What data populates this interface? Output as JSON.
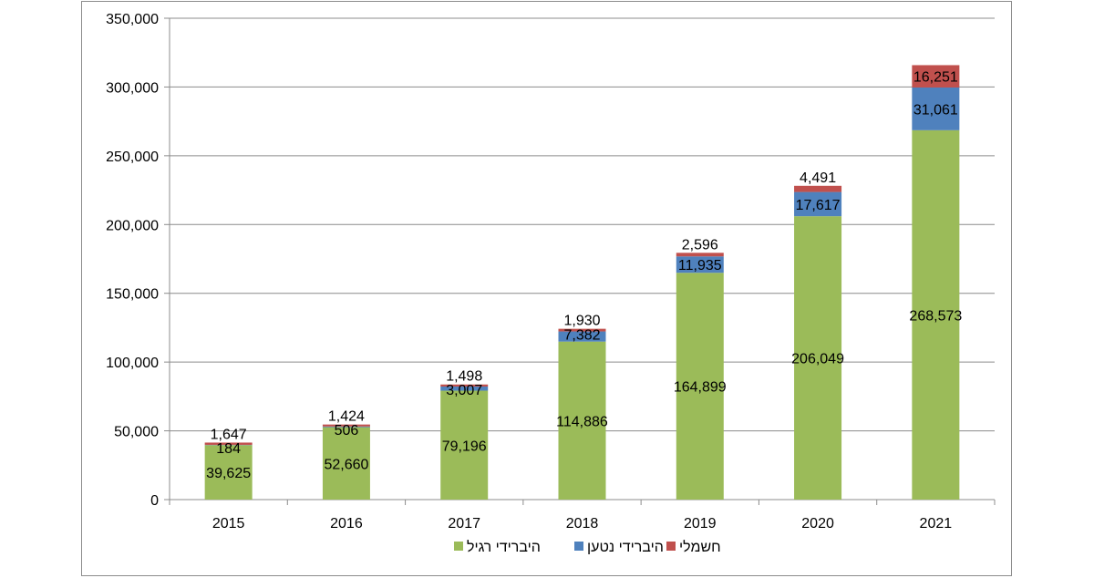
{
  "chart_data": {
    "type": "bar",
    "stacked": true,
    "title": "",
    "xlabel": "",
    "ylabel": "",
    "categories": [
      "2015",
      "2016",
      "2017",
      "2018",
      "2019",
      "2020",
      "2021"
    ],
    "ylim": [
      0,
      350000
    ],
    "yticks": [
      0,
      50000,
      100000,
      150000,
      200000,
      250000,
      300000,
      350000
    ],
    "ytick_labels": [
      "0",
      "50,000",
      "100,000",
      "150,000",
      "200,000",
      "250,000",
      "300,000",
      "350,000"
    ],
    "grid": true,
    "legend_position": "bottom",
    "series": [
      {
        "name": "היברידי רגיל",
        "color": "#9bbb59",
        "values": [
          39625,
          52660,
          79196,
          114886,
          164899,
          206049,
          268573
        ],
        "labels": [
          "39,625",
          "52,660",
          "79,196",
          "114,886",
          "164,899",
          "206,049",
          "268,573"
        ]
      },
      {
        "name": "היברידי נטען",
        "color": "#4f81bd",
        "values": [
          184,
          506,
          3007,
          7382,
          11935,
          17617,
          31061
        ],
        "labels": [
          "184",
          "506",
          "3,007",
          "7,382",
          "11,935",
          "17,617",
          "31,061"
        ]
      },
      {
        "name": "חשמלי",
        "color": "#c0504d",
        "values": [
          1647,
          1424,
          1498,
          1930,
          2596,
          4491,
          16251
        ],
        "labels": [
          "1,647",
          "1,424",
          "1,498",
          "1,930",
          "2,596",
          "4,491",
          "16,251"
        ]
      }
    ]
  }
}
